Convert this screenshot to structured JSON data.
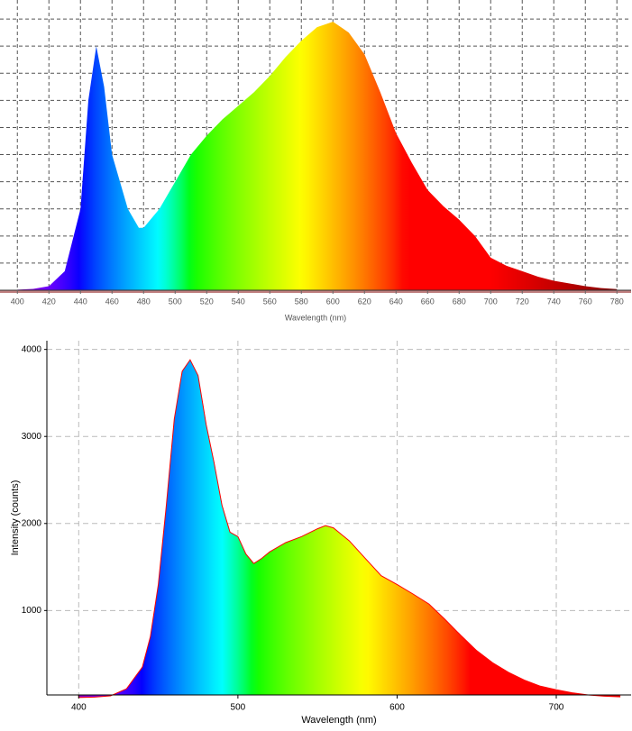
{
  "chart_data": [
    {
      "type": "area",
      "x": [
        400,
        410,
        420,
        430,
        440,
        445,
        450,
        455,
        460,
        470,
        477,
        480,
        490,
        500,
        510,
        520,
        530,
        540,
        550,
        560,
        570,
        580,
        590,
        600,
        610,
        620,
        630,
        640,
        650,
        660,
        670,
        680,
        690,
        700,
        710,
        720,
        730,
        740,
        750,
        760,
        770,
        780
      ],
      "values": [
        0.02,
        0.05,
        0.15,
        0.7,
        3.0,
        7.0,
        9.0,
        7.5,
        5.0,
        3.0,
        2.3,
        2.3,
        3.0,
        4.0,
        5.0,
        5.7,
        6.3,
        6.8,
        7.3,
        7.9,
        8.6,
        9.2,
        9.7,
        9.9,
        9.5,
        8.7,
        7.3,
        5.8,
        4.7,
        3.7,
        3.1,
        2.6,
        2.0,
        1.2,
        0.9,
        0.7,
        0.5,
        0.35,
        0.25,
        0.15,
        0.08,
        0.04
      ],
      "xlim": [
        389,
        789
      ],
      "ylim": [
        0,
        10.7
      ],
      "xticks": [
        400,
        420,
        440,
        460,
        480,
        500,
        520,
        540,
        560,
        580,
        600,
        620,
        640,
        660,
        680,
        700,
        720,
        740,
        760,
        780
      ],
      "yticks": [
        0,
        1,
        2,
        3,
        4,
        5,
        6,
        7,
        8,
        9,
        10
      ],
      "show_ytick_labels": false,
      "xlabel": "Wavelength (nm)",
      "grid": true
    },
    {
      "type": "area",
      "x": [
        400,
        410,
        420,
        430,
        440,
        445,
        450,
        455,
        460,
        465,
        470,
        475,
        480,
        485,
        490,
        495,
        500,
        505,
        510,
        515,
        520,
        530,
        540,
        550,
        555,
        560,
        570,
        580,
        590,
        600,
        610,
        620,
        630,
        640,
        650,
        660,
        670,
        680,
        690,
        700,
        710,
        720,
        730,
        740
      ],
      "values": [
        0,
        5,
        20,
        100,
        350,
        700,
        1300,
        2200,
        3200,
        3750,
        3880,
        3700,
        3140,
        2700,
        2210,
        1900,
        1850,
        1650,
        1540,
        1600,
        1675,
        1780,
        1850,
        1940,
        1975,
        1950,
        1800,
        1600,
        1400,
        1300,
        1190,
        1075,
        900,
        715,
        540,
        400,
        290,
        200,
        130,
        90,
        55,
        30,
        15,
        8
      ],
      "xlim": [
        380,
        747
      ],
      "ylim": [
        30,
        4100
      ],
      "xticks": [
        400,
        500,
        600,
        700
      ],
      "yticks": [
        1000,
        2000,
        3000,
        4000
      ],
      "show_ytick_labels": true,
      "xlabel": "Wavelength (nm)",
      "ylabel": "Intensity (counts)",
      "outline_color": "#ff0000",
      "grid": true
    }
  ]
}
